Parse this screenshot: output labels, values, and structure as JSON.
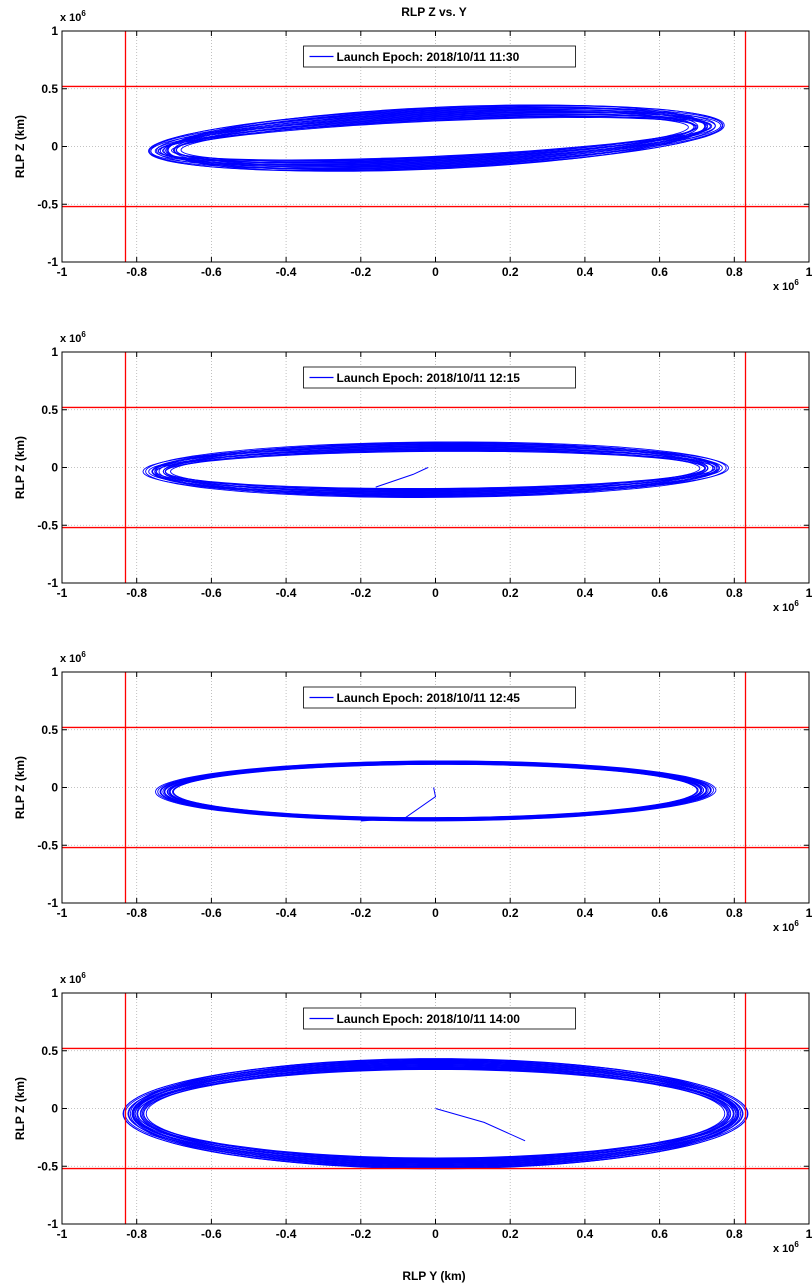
{
  "figure_title": "RLP Z vs. Y",
  "x_axis_label": "RLP Y (km)",
  "colors": {
    "trajectory": "#0000ff",
    "boundary": "#ff0000",
    "grid": "#b0b0b0"
  },
  "chart_data": [
    {
      "type": "line",
      "title": "RLP Z vs. Y",
      "xlabel": "",
      "ylabel": "RLP Z (km)",
      "xlim": [
        -1000000,
        1000000
      ],
      "ylim": [
        -1000000,
        1000000
      ],
      "x_ticks": [
        "-1",
        "-0.8",
        "-0.6",
        "-0.4",
        "-0.2",
        "0",
        "0.2",
        "0.4",
        "0.6",
        "0.8",
        "1"
      ],
      "y_ticks": [
        "1",
        "0.5",
        "0",
        "-0.5",
        "-1"
      ],
      "x_exponent": "x 10",
      "y_exponent": "x 10",
      "exponent_power": "6",
      "grid": true,
      "legend": "top-center",
      "boundary_lines": {
        "y": [
          -830000,
          830000
        ],
        "z": [
          -520000,
          520000
        ]
      },
      "series": [
        {
          "name": "Launch Epoch: 2018/10/11 11:30",
          "shape": "drifting halo, inclined band",
          "y_extent": [
            -850000,
            860000
          ],
          "z_extent": [
            -330000,
            450000
          ],
          "loops": 22
        }
      ]
    },
    {
      "type": "line",
      "title": "",
      "xlabel": "",
      "ylabel": "RLP Z (km)",
      "xlim": [
        -1000000,
        1000000
      ],
      "ylim": [
        -1000000,
        1000000
      ],
      "x_ticks": [
        "-1",
        "-0.8",
        "-0.6",
        "-0.4",
        "-0.2",
        "0",
        "0.2",
        "0.4",
        "0.6",
        "0.8",
        "1"
      ],
      "y_ticks": [
        "1",
        "0.5",
        "0",
        "-0.5",
        "-1"
      ],
      "x_exponent": "x 10",
      "y_exponent": "x 10",
      "exponent_power": "6",
      "grid": true,
      "legend": "top-center",
      "boundary_lines": {
        "y": [
          -830000,
          830000
        ],
        "z": [
          -520000,
          520000
        ]
      },
      "series": [
        {
          "name": "Launch Epoch: 2018/10/11 12:15",
          "shape": "elliptical halo with transfer leg",
          "y_extent": [
            -790000,
            790000
          ],
          "z_extent": [
            -430000,
            330000
          ],
          "loops": 16
        }
      ]
    },
    {
      "type": "line",
      "title": "",
      "xlabel": "",
      "ylabel": "RLP Z (km)",
      "xlim": [
        -1000000,
        1000000
      ],
      "ylim": [
        -1000000,
        1000000
      ],
      "x_ticks": [
        "-1",
        "-0.8",
        "-0.6",
        "-0.4",
        "-0.2",
        "0",
        "0.2",
        "0.4",
        "0.6",
        "0.8",
        "1"
      ],
      "y_ticks": [
        "1",
        "0.5",
        "0",
        "-0.5",
        "-1"
      ],
      "x_exponent": "x 10",
      "y_exponent": "x 10",
      "exponent_power": "6",
      "grid": true,
      "legend": "top-center",
      "boundary_lines": {
        "y": [
          -830000,
          830000
        ],
        "z": [
          -520000,
          520000
        ]
      },
      "series": [
        {
          "name": "Launch Epoch: 2018/10/11 12:45",
          "shape": "tight elliptical halo with transfer leg",
          "y_extent": [
            -760000,
            760000
          ],
          "z_extent": [
            -330000,
            250000
          ],
          "loops": 20
        }
      ]
    },
    {
      "type": "line",
      "title": "",
      "xlabel": "RLP Y (km)",
      "ylabel": "RLP Z (km)",
      "xlim": [
        -1000000,
        1000000
      ],
      "ylim": [
        -1000000,
        1000000
      ],
      "x_ticks": [
        "-1",
        "-0.8",
        "-0.6",
        "-0.4",
        "-0.2",
        "0",
        "0.2",
        "0.4",
        "0.6",
        "0.8",
        "1"
      ],
      "y_ticks": [
        "1",
        "0.5",
        "0",
        "-0.5",
        "-1"
      ],
      "x_exponent": "x 10",
      "y_exponent": "x 10",
      "exponent_power": "6",
      "grid": true,
      "legend": "top-center",
      "boundary_lines": {
        "y": [
          -830000,
          830000
        ],
        "z": [
          -520000,
          520000
        ]
      },
      "series": [
        {
          "name": "Launch Epoch: 2018/10/11 14:00",
          "shape": "wide elliptical halo with transfer leg",
          "y_extent": [
            -900000,
            900000
          ],
          "z_extent": [
            -560000,
            470000
          ],
          "loops": 22
        }
      ]
    }
  ]
}
